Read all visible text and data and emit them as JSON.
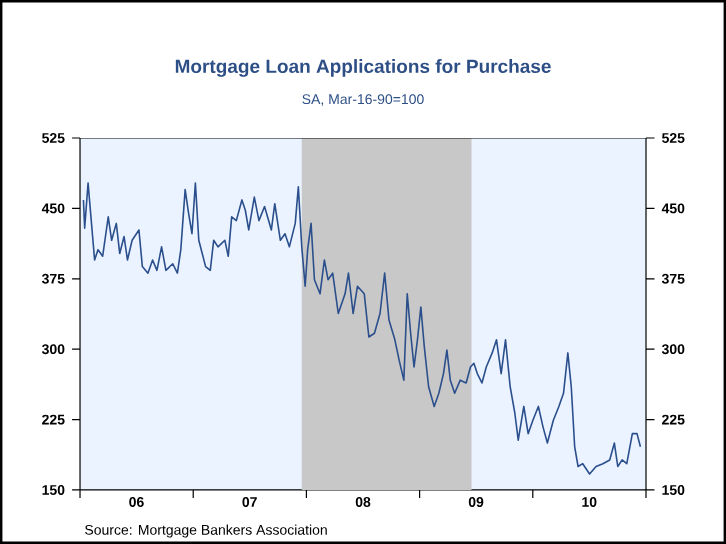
{
  "chart_data": {
    "type": "line",
    "title": "Mortgage Loan Applications for Purchase",
    "subtitle": "SA, Mar-16-90=100",
    "annotations": [
      "Source:  Mortgage Bankers Association"
    ],
    "xlim": [
      "2006-01-01",
      "2011-01-01"
    ],
    "xticks": [
      {
        "value": "2006-01-01",
        "label": null
      },
      {
        "value": "2006-07-02",
        "label": "06"
      },
      {
        "value": "2007-01-01",
        "label": null
      },
      {
        "value": "2007-07-02",
        "label": "07"
      },
      {
        "value": "2008-01-01",
        "label": null
      },
      {
        "value": "2008-07-02",
        "label": "08"
      },
      {
        "value": "2009-01-01",
        "label": null
      },
      {
        "value": "2009-07-02",
        "label": "09"
      },
      {
        "value": "2010-01-01",
        "label": null
      },
      {
        "value": "2010-07-02",
        "label": "10"
      },
      {
        "value": "2011-01-01",
        "label": null
      }
    ],
    "ylim": [
      150,
      525
    ],
    "yticks": [
      150,
      225,
      300,
      375,
      450,
      525
    ],
    "y2lim": [
      150,
      525
    ],
    "y2ticks": [
      150,
      225,
      300,
      375,
      450,
      525
    ],
    "grid": false,
    "marker": "none",
    "line_style": "solid",
    "bands": [
      {
        "axis": "x",
        "from": "2007-12-17",
        "to": "2009-06-18",
        "color": "#c8c8c8"
      }
    ],
    "series": [
      {
        "color": "#2b4f8c",
        "x": [
          "2006-01-12",
          "2006-01-16",
          "2006-01-27",
          "2006-02-07",
          "2006-02-17",
          "2006-02-28",
          "2006-03-15",
          "2006-04-02",
          "2006-04-13",
          "2006-04-28",
          "2006-05-09",
          "2006-05-23",
          "2006-06-03",
          "2006-06-18",
          "2006-07-10",
          "2006-07-21",
          "2006-08-08",
          "2006-08-23",
          "2006-09-06",
          "2006-09-21",
          "2006-10-05",
          "2006-10-27",
          "2006-11-11",
          "2006-11-22",
          "2006-12-06",
          "2006-12-17",
          "2006-12-28",
          "2007-01-08",
          "2007-01-19",
          "2007-02-10",
          "2007-02-25",
          "2007-03-08",
          "2007-03-22",
          "2007-04-13",
          "2007-04-24",
          "2007-05-05",
          "2007-05-20",
          "2007-06-07",
          "2007-06-18",
          "2007-06-29",
          "2007-07-17",
          "2007-08-01",
          "2007-08-19",
          "2007-09-10",
          "2007-09-21",
          "2007-10-09",
          "2007-10-24",
          "2007-11-07",
          "2007-11-26",
          "2007-12-06",
          "2007-12-17",
          "2007-12-28",
          "2008-01-05",
          "2008-01-16",
          "2008-01-27",
          "2008-02-14",
          "2008-02-28",
          "2008-03-11",
          "2008-03-26",
          "2008-04-13",
          "2008-05-05",
          "2008-05-16",
          "2008-05-31",
          "2008-06-14",
          "2008-07-06",
          "2008-07-21",
          "2008-08-08",
          "2008-08-26",
          "2008-09-10",
          "2008-09-24",
          "2008-10-13",
          "2008-10-27",
          "2008-11-11",
          "2008-11-22",
          "2008-12-03",
          "2008-12-14",
          "2008-12-25",
          "2009-01-05",
          "2009-01-16",
          "2009-01-30",
          "2009-02-17",
          "2009-03-04",
          "2009-03-19",
          "2009-03-30",
          "2009-04-10",
          "2009-04-24",
          "2009-05-12",
          "2009-05-31",
          "2009-06-14",
          "2009-06-25",
          "2009-07-06",
          "2009-07-21",
          "2009-08-04",
          "2009-08-23",
          "2009-09-06",
          "2009-09-21",
          "2009-10-05",
          "2009-10-20",
          "2009-11-04",
          "2009-11-15",
          "2009-12-03",
          "2009-12-17",
          "2010-01-01",
          "2010-01-19",
          "2010-02-03",
          "2010-02-17",
          "2010-03-08",
          "2010-03-26",
          "2010-04-10",
          "2010-04-24",
          "2010-05-05",
          "2010-05-16",
          "2010-05-27",
          "2010-06-11",
          "2010-07-03",
          "2010-07-24",
          "2010-08-15",
          "2010-09-06",
          "2010-09-21",
          "2010-10-02",
          "2010-10-16",
          "2010-10-31",
          "2010-11-18",
          "2010-12-03",
          "2010-12-14"
        ],
        "values": [
          459,
          429,
          477,
          434,
          395,
          406,
          399,
          441,
          416,
          434,
          402,
          420,
          395,
          416,
          427,
          388,
          381,
          395,
          384,
          409,
          384,
          391,
          381,
          406,
          470,
          445,
          423,
          477,
          416,
          388,
          384,
          416,
          409,
          416,
          399,
          441,
          437,
          459,
          448,
          427,
          462,
          437,
          452,
          427,
          455,
          416,
          423,
          409,
          434,
          473,
          409,
          367,
          406,
          434,
          374,
          359,
          395,
          374,
          381,
          338,
          359,
          381,
          338,
          367,
          359,
          313,
          317,
          338,
          381,
          331,
          310,
          288,
          267,
          359,
          317,
          281,
          310,
          345,
          303,
          260,
          239,
          253,
          274,
          299,
          267,
          253,
          267,
          264,
          281,
          285,
          274,
          264,
          281,
          296,
          310,
          274,
          310,
          260,
          232,
          203,
          239,
          210,
          224,
          239,
          217,
          200,
          224,
          239,
          253,
          296,
          260,
          196,
          175,
          178,
          167,
          175,
          178,
          182,
          200,
          175,
          182,
          178,
          210,
          210,
          196
        ]
      }
    ]
  }
}
